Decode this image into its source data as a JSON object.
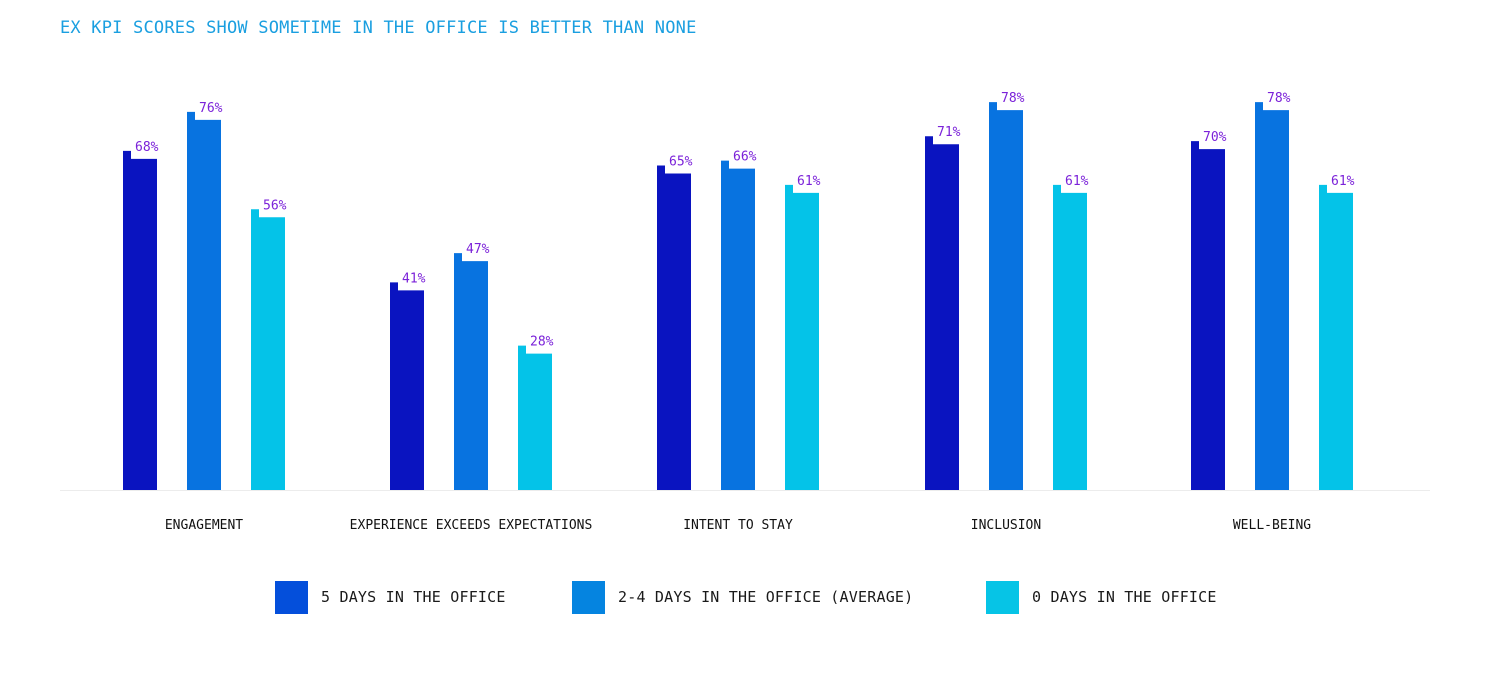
{
  "title": "EX KPI SCORES SHOW SOMETIME IN THE OFFICE IS BETTER THAN NONE",
  "chart_data": {
    "type": "bar",
    "title": "EX KPI SCORES SHOW SOMETIME IN THE OFFICE IS BETTER THAN NONE",
    "categories": [
      "ENGAGEMENT",
      "EXPERIENCE EXCEEDS EXPECTATIONS",
      "INTENT TO STAY",
      "INCLUSION",
      "WELL-BEING"
    ],
    "series": [
      {
        "name": "5 DAYS IN THE OFFICE",
        "color": "#0a14c0",
        "values": [
          68,
          41,
          65,
          71,
          70
        ]
      },
      {
        "name": "2-4 DAYS IN THE OFFICE (AVERAGE)",
        "color": "#0873e0",
        "values": [
          76,
          47,
          66,
          78,
          78
        ]
      },
      {
        "name": "0 DAYS IN THE OFFICE",
        "color": "#04c3e8",
        "values": [
          56,
          28,
          61,
          61,
          61
        ]
      }
    ],
    "data_labels": [
      [
        "68%",
        "41%",
        "65%",
        "71%",
        "70%"
      ],
      [
        "76%",
        "47%",
        "66%",
        "78%",
        "78%"
      ],
      [
        "56%",
        "28%",
        "61%",
        "61%",
        "61%"
      ]
    ],
    "ylim": [
      0,
      100
    ],
    "xlabel": "",
    "ylabel": "",
    "grid": false,
    "legend_position": "bottom",
    "label_color": "#7b22d9"
  },
  "legend": [
    {
      "label": "5 DAYS IN THE OFFICE",
      "color": "#044fdb"
    },
    {
      "label": "2-4 DAYS IN THE OFFICE (AVERAGE)",
      "color": "#0584e0"
    },
    {
      "label": "0 DAYS IN THE OFFICE",
      "color": "#06c4e6"
    }
  ]
}
